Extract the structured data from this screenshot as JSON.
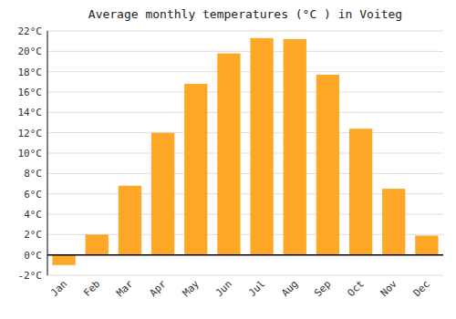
{
  "chart_data": {
    "type": "bar",
    "title": "Average monthly temperatures (°C ) in Voiteg",
    "categories": [
      "Jan",
      "Feb",
      "Mar",
      "Apr",
      "May",
      "Jun",
      "Jul",
      "Aug",
      "Sep",
      "Oct",
      "Nov",
      "Dec"
    ],
    "values": [
      -1.0,
      2.0,
      6.8,
      12.0,
      16.8,
      19.8,
      21.3,
      21.2,
      17.7,
      12.4,
      6.5,
      1.9
    ],
    "color": "#FFA726",
    "ylim": [
      -2,
      22
    ],
    "yticks": [
      {
        "value": -2,
        "label": "-2°C"
      },
      {
        "value": 0,
        "label": "0°C"
      },
      {
        "value": 2,
        "label": "2°C"
      },
      {
        "value": 4,
        "label": "4°C"
      },
      {
        "value": 6,
        "label": "6°C"
      },
      {
        "value": 8,
        "label": "8°C"
      },
      {
        "value": 10,
        "label": "10°C"
      },
      {
        "value": 12,
        "label": "12°C"
      },
      {
        "value": 14,
        "label": "14°C"
      },
      {
        "value": 16,
        "label": "16°C"
      },
      {
        "value": 18,
        "label": "18°C"
      },
      {
        "value": 20,
        "label": "20°C"
      },
      {
        "value": 22,
        "label": "22°C"
      }
    ],
    "grid": true
  }
}
